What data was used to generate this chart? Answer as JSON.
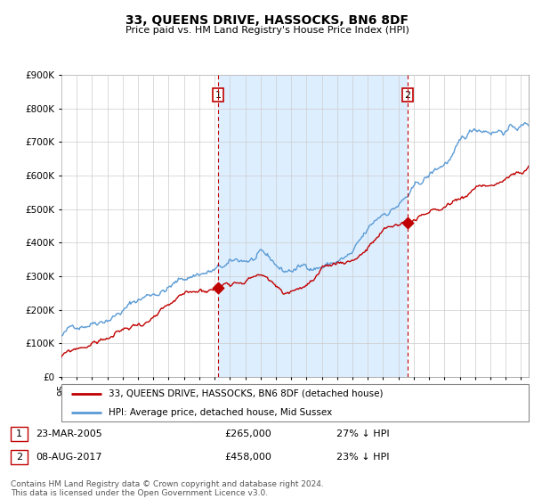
{
  "title": "33, QUEENS DRIVE, HASSOCKS, BN6 8DF",
  "subtitle": "Price paid vs. HM Land Registry's House Price Index (HPI)",
  "ylabel_ticks": [
    "£0",
    "£100K",
    "£200K",
    "£300K",
    "£400K",
    "£500K",
    "£600K",
    "£700K",
    "£800K",
    "£900K"
  ],
  "ylim": [
    0,
    900000
  ],
  "xlim_start": 1995.0,
  "xlim_end": 2025.5,
  "hpi_color": "#5b9bd5",
  "price_color": "#c00000",
  "vline_color": "#c00000",
  "shade_color": "#ddeeff",
  "purchase1_date": 2005.22,
  "purchase1_price": 265000,
  "purchase2_date": 2017.6,
  "purchase2_price": 458000,
  "legend_entry1": "33, QUEENS DRIVE, HASSOCKS, BN6 8DF (detached house)",
  "legend_entry2": "HPI: Average price, detached house, Mid Sussex",
  "table_row1": [
    "1",
    "23-MAR-2005",
    "£265,000",
    "27% ↓ HPI"
  ],
  "table_row2": [
    "2",
    "08-AUG-2017",
    "£458,000",
    "23% ↓ HPI"
  ],
  "footnote": "Contains HM Land Registry data © Crown copyright and database right 2024.\nThis data is licensed under the Open Government Licence v3.0.",
  "background_color": "#ffffff",
  "grid_color": "#cccccc"
}
